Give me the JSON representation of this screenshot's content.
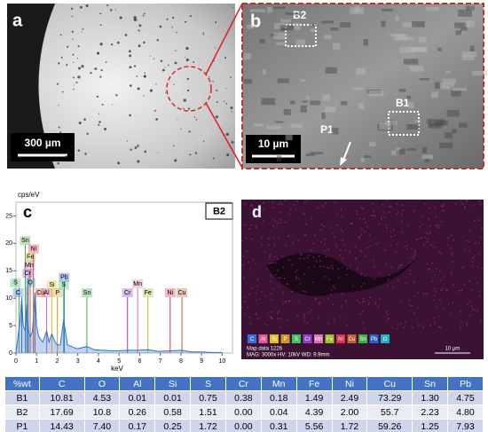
{
  "panels": {
    "a": {
      "label": "a",
      "scale_bar": "300 µm"
    },
    "b": {
      "label": "b",
      "scale_bar": "10 µm",
      "regions": [
        "B2",
        "B1",
        "P1"
      ]
    },
    "d": {
      "label": "d",
      "elements": [
        {
          "name": "C",
          "color": "#3b6fe0"
        },
        {
          "name": "Al",
          "color": "#e05a9a"
        },
        {
          "name": "Si",
          "color": "#d8c020"
        },
        {
          "name": "P",
          "color": "#c89a20"
        },
        {
          "name": "S",
          "color": "#3cc060"
        },
        {
          "name": "Cr",
          "color": "#9040c8"
        },
        {
          "name": "Mn",
          "color": "#e070b0"
        },
        {
          "name": "Fe",
          "color": "#a0c020"
        },
        {
          "name": "Ni",
          "color": "#e03050"
        },
        {
          "name": "Cu",
          "color": "#c06030"
        },
        {
          "name": "Sn",
          "color": "#40b040"
        },
        {
          "name": "Pb",
          "color": "#3060d0"
        },
        {
          "name": "O",
          "color": "#20b0c0"
        }
      ],
      "map_title": "Map data 1226",
      "map_info": "MAG: 3000x   HV: 10kV   WD: 9.9mm",
      "scale_bar": "10 µm"
    }
  },
  "chart_data": {
    "type": "line",
    "panel_label": "c",
    "annotation": "B2",
    "y_label": "cps/eV",
    "x_label": "keV",
    "color": "#2f6fcf",
    "x": [
      0,
      0.1,
      0.2,
      0.28,
      0.35,
      0.45,
      0.52,
      0.6,
      0.7,
      0.8,
      0.93,
      1.0,
      1.1,
      1.3,
      1.49,
      1.6,
      1.74,
      1.9,
      2.01,
      2.15,
      2.31,
      2.5,
      2.8,
      3.0,
      3.44,
      3.8,
      4.2,
      4.7,
      5.0,
      5.41,
      5.9,
      6.4,
      6.9,
      7.48,
      8.05,
      8.5,
      9.0,
      9.5,
      10
    ],
    "values": [
      0,
      3,
      6,
      10,
      5,
      4,
      9,
      4,
      3,
      4,
      11,
      5,
      3,
      2,
      4,
      2,
      3.5,
      2,
      1.5,
      1.5,
      6,
      1.5,
      1,
      0.8,
      1.2,
      0.6,
      0.5,
      0.4,
      0.4,
      0.5,
      0.5,
      0.6,
      0.3,
      0.4,
      0.5,
      0.2,
      0.2,
      0.1,
      0.1
    ],
    "xlim": [
      0,
      10.5
    ],
    "ylim": [
      0,
      27.5
    ],
    "xticks": [
      0,
      1,
      2,
      3,
      4,
      5,
      6,
      7,
      8,
      9,
      10
    ],
    "yticks": [
      0,
      5,
      10,
      15,
      20,
      25
    ],
    "markers": [
      {
        "label": "Sn",
        "energy": 0.45,
        "color": "#40b040"
      },
      {
        "label": "Ni",
        "energy": 0.85,
        "color": "#e03050"
      },
      {
        "label": "Fe",
        "energy": 0.7,
        "color": "#a0c020"
      },
      {
        "label": "Mn",
        "energy": 0.64,
        "color": "#e070b0"
      },
      {
        "label": "Cr",
        "energy": 0.57,
        "color": "#9040c8"
      },
      {
        "label": "S",
        "energy": 0.15,
        "color": "#3cc060"
      },
      {
        "label": "O",
        "energy": 0.52,
        "color": "#20b0c0"
      },
      {
        "label": "C",
        "energy": 0.28,
        "color": "#3b6fe0"
      },
      {
        "label": "Cu",
        "energy": 0.93,
        "color": "#c06030"
      },
      {
        "label": "Al",
        "energy": 1.49,
        "color": "#e05a9a"
      },
      {
        "label": "Si",
        "energy": 1.74,
        "color": "#d8c020"
      },
      {
        "label": "P",
        "energy": 2.01,
        "color": "#c89a20"
      },
      {
        "label": "Pb",
        "energy": 2.34,
        "color": "#3060d0"
      },
      {
        "label": "S",
        "energy": 2.31,
        "color": "#3cc060"
      },
      {
        "label": "Sn",
        "energy": 3.44,
        "color": "#40b040"
      },
      {
        "label": "Cr",
        "energy": 5.41,
        "color": "#9040c8"
      },
      {
        "label": "Mn",
        "energy": 5.9,
        "color": "#e070b0"
      },
      {
        "label": "Fe",
        "energy": 6.4,
        "color": "#a0c020"
      },
      {
        "label": "Ni",
        "energy": 7.48,
        "color": "#e03050"
      },
      {
        "label": "Cu",
        "energy": 8.05,
        "color": "#c06030"
      }
    ]
  },
  "table": {
    "header": [
      "%wt",
      "C",
      "O",
      "Al",
      "Si",
      "S",
      "Cr",
      "Mn",
      "Fe",
      "Ni",
      "Cu",
      "Sn",
      "Pb"
    ],
    "rows": [
      [
        "B1",
        "10.81",
        "4.53",
        "0.01",
        "0.01",
        "0.75",
        "0.38",
        "0.18",
        "1.49",
        "2.49",
        "73.29",
        "1.30",
        "4.75"
      ],
      [
        "B2",
        "17.69",
        "10.8",
        "0.26",
        "0.58",
        "1.51",
        "0.00",
        "0.04",
        "4.39",
        "2.00",
        "55.7",
        "2.23",
        "4.80"
      ],
      [
        "P1",
        "14.43",
        "7.40",
        "0.17",
        "0.25",
        "1.72",
        "0.00",
        "0.31",
        "5.56",
        "1.72",
        "59.26",
        "1.25",
        "7.93"
      ]
    ]
  }
}
